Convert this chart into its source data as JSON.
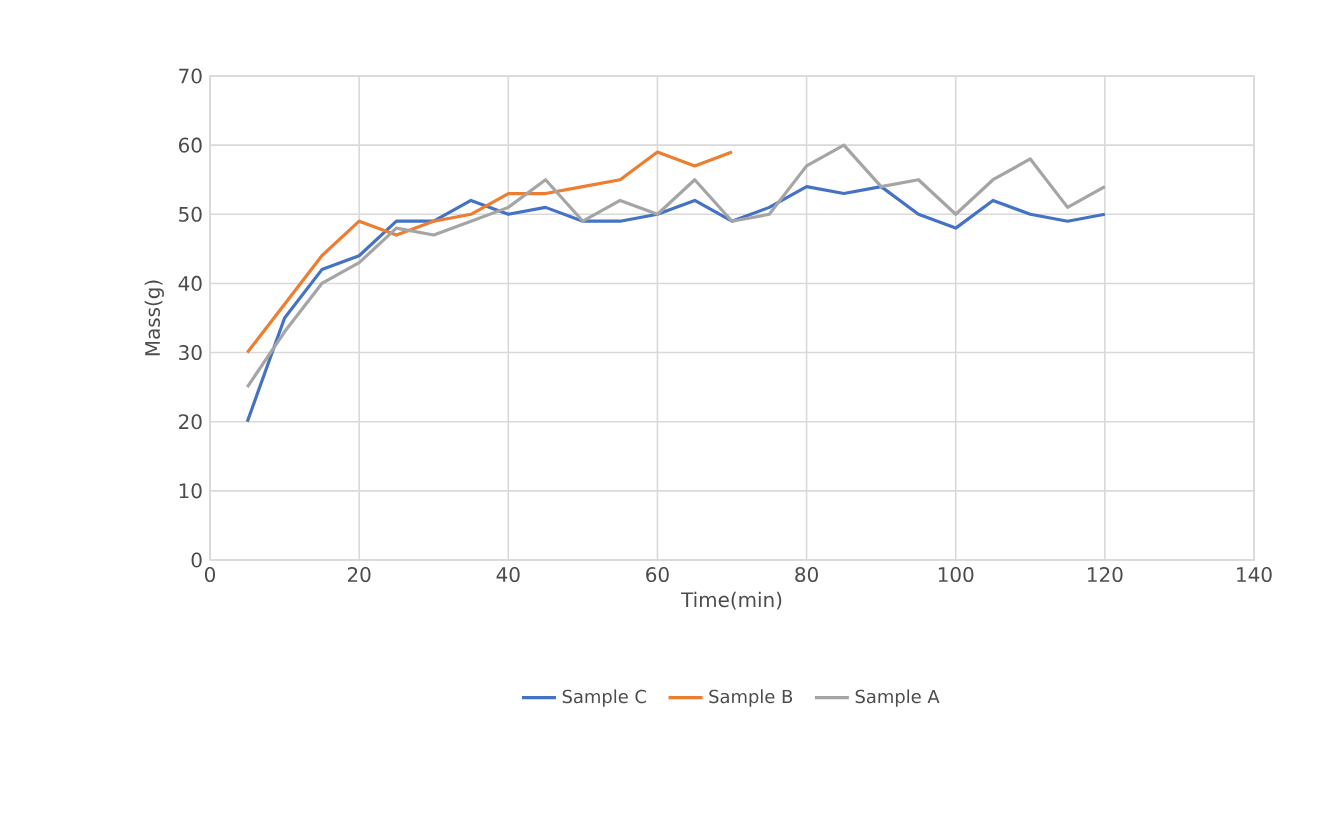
{
  "chart_data": {
    "type": "line",
    "xlabel": "Time(min)",
    "ylabel": "Mass(g)",
    "xlim": [
      0,
      140
    ],
    "xticks": [
      0,
      20,
      40,
      60,
      80,
      100,
      120,
      140
    ],
    "ylim": [
      0,
      70
    ],
    "yticks": [
      0,
      10,
      20,
      30,
      40,
      50,
      60,
      70
    ],
    "grid": true,
    "legend": "bottom",
    "marker": "none",
    "line_style": "solid",
    "series": [
      {
        "name": "Sample C",
        "color": "#4472c4",
        "x": [
          5,
          10,
          15,
          20,
          25,
          30,
          35,
          40,
          45,
          50,
          55,
          60,
          65,
          70,
          75,
          80,
          85,
          90,
          95,
          100,
          105,
          110,
          115,
          120
        ],
        "values": [
          20,
          35,
          42,
          44,
          49,
          49,
          52,
          50,
          51,
          49,
          49,
          50,
          52,
          49,
          51,
          54,
          53,
          54,
          50,
          48,
          52,
          50,
          49,
          50
        ]
      },
      {
        "name": "Sample B",
        "color": "#ed7d31",
        "x": [
          5,
          10,
          15,
          20,
          25,
          30,
          35,
          40,
          45,
          50,
          55,
          60,
          65,
          70
        ],
        "values": [
          30,
          37,
          44,
          49,
          47,
          49,
          50,
          53,
          53,
          54,
          55,
          59,
          57,
          59
        ]
      },
      {
        "name": "Sample A",
        "color": "#a5a5a5",
        "x": [
          5,
          10,
          15,
          20,
          25,
          30,
          35,
          40,
          45,
          50,
          55,
          60,
          65,
          70,
          75,
          80,
          85,
          90,
          95,
          100,
          105,
          110,
          115,
          120
        ],
        "values": [
          25,
          33,
          40,
          43,
          48,
          47,
          49,
          51,
          55,
          49,
          52,
          50,
          55,
          49,
          50,
          57,
          60,
          54,
          55,
          50,
          55,
          58,
          51,
          54
        ]
      }
    ]
  }
}
